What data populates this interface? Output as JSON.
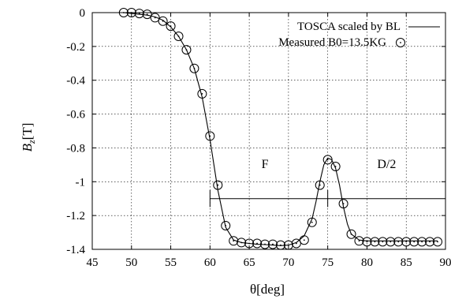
{
  "chart_data": {
    "type": "line",
    "xlabel": "θ[deg]",
    "ylabel_main": "B",
    "ylabel_sub": "z",
    "ylabel_unit": "[T]",
    "xlim": [
      45,
      90
    ],
    "ylim": [
      -1.4,
      0
    ],
    "xticks": [
      45,
      50,
      55,
      60,
      65,
      70,
      75,
      80,
      85,
      90
    ],
    "yticks": [
      0,
      -0.2,
      -0.4,
      -0.6,
      -0.8,
      -1,
      -1.2,
      -1.4
    ],
    "xtick_labels": [
      "45",
      "50",
      "55",
      "60",
      "65",
      "70",
      "75",
      "80",
      "85",
      "90"
    ],
    "ytick_labels": [
      "0",
      "-0.2",
      "-0.4",
      "-0.6",
      "-0.8",
      "-1",
      "-1.2",
      "-1.4"
    ],
    "grid": true,
    "legend_position": "top-right",
    "series": [
      {
        "name": "TOSCA scaled by BL",
        "style": "line",
        "color": "#000000",
        "x": [
          49,
          50,
          51,
          52,
          53,
          54,
          55,
          56,
          57,
          58,
          59,
          60,
          61,
          62,
          63,
          64,
          65,
          66,
          67,
          68,
          69,
          70,
          71,
          72,
          73,
          73.5,
          74,
          74.5,
          75,
          75.5,
          76,
          76.5,
          77,
          77.5,
          78,
          79,
          80,
          81,
          82,
          83,
          84,
          85,
          86,
          87,
          88,
          89
        ],
        "y": [
          0,
          -0.005,
          -0.01,
          -0.015,
          -0.025,
          -0.045,
          -0.085,
          -0.14,
          -0.22,
          -0.33,
          -0.5,
          -0.75,
          -1.05,
          -1.27,
          -1.345,
          -1.36,
          -1.365,
          -1.37,
          -1.372,
          -1.375,
          -1.378,
          -1.375,
          -1.36,
          -1.32,
          -1.22,
          -1.12,
          -1.0,
          -0.9,
          -0.86,
          -0.87,
          -0.92,
          -1.02,
          -1.15,
          -1.25,
          -1.31,
          -1.345,
          -1.35,
          -1.35,
          -1.35,
          -1.35,
          -1.35,
          -1.35,
          -1.35,
          -1.35,
          -1.35,
          -1.35
        ]
      },
      {
        "name": "Measured B0=13.5KG",
        "style": "markers",
        "marker": "circle-dot",
        "color": "#000000",
        "x": [
          49,
          50,
          51,
          52,
          53,
          54,
          55,
          56,
          57,
          58,
          59,
          60,
          61,
          62,
          63,
          64,
          65,
          66,
          67,
          68,
          69,
          70,
          71,
          72,
          73,
          74,
          75,
          76,
          77,
          78,
          79,
          80,
          81,
          82,
          83,
          84,
          85,
          86,
          87,
          88,
          89
        ],
        "y": [
          0,
          0,
          -0.005,
          -0.01,
          -0.03,
          -0.05,
          -0.08,
          -0.14,
          -0.22,
          -0.33,
          -0.48,
          -0.73,
          -1.02,
          -1.26,
          -1.35,
          -1.36,
          -1.365,
          -1.365,
          -1.37,
          -1.37,
          -1.375,
          -1.375,
          -1.365,
          -1.345,
          -1.24,
          -1.02,
          -0.87,
          -0.91,
          -1.13,
          -1.31,
          -1.35,
          -1.355,
          -1.355,
          -1.355,
          -1.355,
          -1.355,
          -1.355,
          -1.355,
          -1.355,
          -1.355,
          -1.355
        ]
      }
    ],
    "annotations": [
      {
        "name": "region-line",
        "x": [
          60,
          90
        ],
        "y": [
          -1.1,
          -1.1
        ]
      },
      {
        "name": "region-tick-1",
        "x": [
          60,
          60
        ],
        "y": [
          -1.05,
          -1.15
        ]
      },
      {
        "name": "region-tick-2",
        "x": [
          75,
          75
        ],
        "y": [
          -1.05,
          -1.15
        ]
      },
      {
        "name": "label-F",
        "text": "F",
        "x": 67,
        "y": -0.92
      },
      {
        "name": "label-D2",
        "text": "D/2",
        "x": 82.5,
        "y": -0.92
      }
    ]
  }
}
